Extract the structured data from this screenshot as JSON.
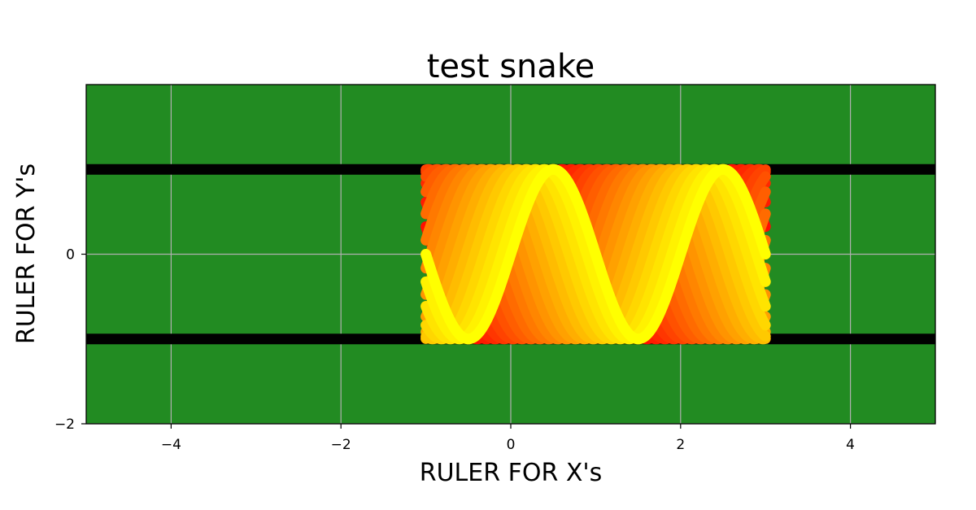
{
  "chart_data": {
    "type": "line",
    "title": "test snake",
    "xlabel": "RULER FOR X's",
    "ylabel": "RULER FOR Y's",
    "xlim": [
      -5,
      5
    ],
    "ylim": [
      -2,
      2
    ],
    "x_ticks": [
      {
        "value": -4,
        "label": "−4"
      },
      {
        "value": -2,
        "label": "−2"
      },
      {
        "value": 0,
        "label": "0"
      },
      {
        "value": 2,
        "label": "2"
      },
      {
        "value": 4,
        "label": "4"
      }
    ],
    "y_ticks": [
      {
        "value": -2,
        "label": "−2"
      },
      {
        "value": 0,
        "label": "0"
      }
    ],
    "grid": true,
    "background_color": "#228b22",
    "grid_color": "#b0b0b0",
    "boundary_lines": [
      {
        "y": 1,
        "color": "#000000"
      },
      {
        "y": -1,
        "color": "#000000"
      }
    ],
    "snake": {
      "function": "sin",
      "x_range": [
        -1,
        3
      ],
      "wavelength": 2,
      "trail_count": 20,
      "color_tail": "#ff0000",
      "color_head": "#ffff00"
    }
  }
}
